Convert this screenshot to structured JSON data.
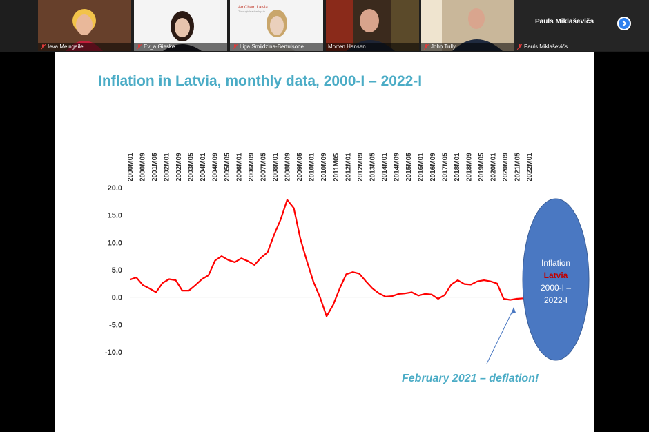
{
  "participants": [
    {
      "name": "Ieva Melngaile",
      "muted": true
    },
    {
      "name": "Ev_a Gieske",
      "muted": true
    },
    {
      "name": "Liga Smiidzina-Bertulsone",
      "muted": true
    },
    {
      "name": "Morten Hansen",
      "muted": false
    },
    {
      "name": "John Tully",
      "muted": true
    },
    {
      "name": "Pauls Miklaševičs",
      "muted": true
    }
  ],
  "tile_logo": {
    "brand": "AmCham Latvia",
    "sub": "Through leadership to..."
  },
  "speaker_panel": {
    "name": "Pauls Miklaševičs"
  },
  "slide": {
    "title": "Inflation in Latvia, monthly data, 2000-I – 2022-I",
    "ellipse_lines": [
      "Inflation",
      "Latvia",
      "2000-I –",
      "2022-I"
    ],
    "annotation": "February 2021 – deflation!"
  },
  "colors": {
    "title": "#4bacc6",
    "line": "#ff0000",
    "ellipse": "#4a78c2",
    "highlight": "#c00000",
    "annotation": "#4bacc6"
  },
  "chart_data": {
    "type": "line",
    "title": "",
    "x_ticks": [
      "2000M01",
      "2000M09",
      "2001M05",
      "2002M01",
      "2002M09",
      "2003M05",
      "2004M01",
      "2004M09",
      "2005M05",
      "2006M01",
      "2006M09",
      "2007M05",
      "2008M01",
      "2008M09",
      "2009M05",
      "2010M01",
      "2010M09",
      "2011M05",
      "2012M01",
      "2012M09",
      "2013M05",
      "2014M01",
      "2014M09",
      "2015M05",
      "2016M01",
      "2016M09",
      "2017M05",
      "2018M01",
      "2018M09",
      "2019M05",
      "2020M01",
      "2020M09",
      "2021M05",
      "2022M01"
    ],
    "y_ticks": [
      "20.0",
      "15.0",
      "10.0",
      "5.0",
      "0.0",
      "-5.0",
      "-10.0"
    ],
    "ylim": [
      -10,
      20
    ],
    "series": [
      {
        "values": [
          3.2,
          3.6,
          2.2,
          1.6,
          0.9,
          2.6,
          3.3,
          3.1,
          1.2,
          1.2,
          2.2,
          3.3,
          4.0,
          6.7,
          7.5,
          6.8,
          6.4,
          7.1,
          6.6,
          5.9,
          7.2,
          8.2,
          11.4,
          14.2,
          17.8,
          16.3,
          10.7,
          6.6,
          2.8,
          0.0,
          -3.5,
          -1.4,
          1.6,
          4.2,
          4.6,
          4.3,
          2.9,
          1.6,
          0.7,
          0.1,
          0.2,
          0.6,
          0.7,
          0.9,
          0.3,
          0.6,
          0.5,
          -0.3,
          0.4,
          2.3,
          3.1,
          2.4,
          2.3,
          2.9,
          3.1,
          2.9,
          2.5,
          -0.3,
          -0.5,
          -0.3,
          -0.2
        ]
      }
    ]
  }
}
